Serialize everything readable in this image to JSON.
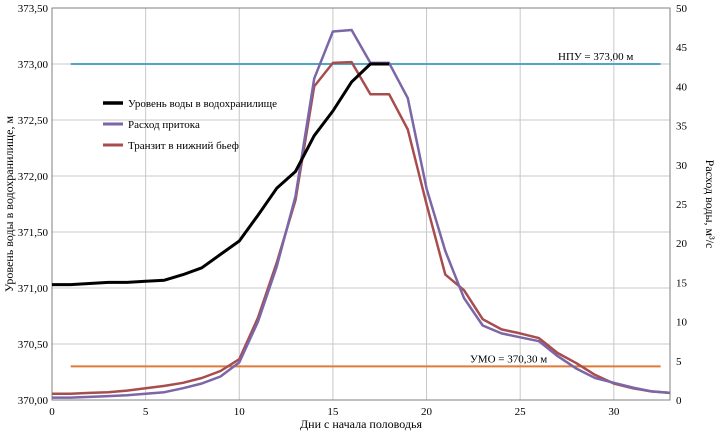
{
  "chart_data": {
    "type": "line",
    "xlabel": "Дни с начала половодья",
    "ylabel_left": "Уровень воды в водохранилище, м",
    "ylabel_right": "Расход воды, м³/с",
    "xlim": [
      0,
      33
    ],
    "ylim_left": [
      370.0,
      373.5
    ],
    "ylim_right": [
      0,
      50
    ],
    "x_ticks": [
      "0",
      "5",
      "10",
      "15",
      "20",
      "25",
      "30"
    ],
    "x_tick_values": [
      0,
      5,
      10,
      15,
      20,
      25,
      30
    ],
    "y_left_ticks": [
      "370,00",
      "370,50",
      "371,00",
      "371,50",
      "372,00",
      "372,50",
      "373,00",
      "373,50"
    ],
    "y_left_tick_values": [
      370.0,
      370.5,
      371.0,
      371.5,
      372.0,
      372.5,
      373.0,
      373.5
    ],
    "y_right_ticks": [
      "0",
      "5",
      "10",
      "15",
      "20",
      "25",
      "30",
      "35",
      "40",
      "45",
      "50"
    ],
    "y_right_tick_values": [
      0,
      5,
      10,
      15,
      20,
      25,
      30,
      35,
      40,
      45,
      50
    ],
    "grid": true,
    "legend_placement": "upper-left",
    "series": [
      {
        "name": "Уровень воды в водохранилище",
        "axis": "left",
        "color": "#000000",
        "x": [
          0,
          1,
          2,
          3,
          4,
          5,
          6,
          7,
          8,
          9,
          10,
          11,
          12,
          13,
          14,
          15,
          16,
          17,
          18
        ],
        "values": [
          371.03,
          371.03,
          371.04,
          371.05,
          371.05,
          371.06,
          371.07,
          371.12,
          371.18,
          371.3,
          371.42,
          371.65,
          371.89,
          372.04,
          372.36,
          372.58,
          372.84,
          373.0,
          373.0
        ]
      },
      {
        "name": "Расход притока",
        "axis": "right",
        "color": "#7b66a8",
        "x": [
          0,
          1,
          2,
          3,
          4,
          5,
          6,
          7,
          8,
          9,
          10,
          11,
          12,
          13,
          14,
          15,
          16,
          17,
          18,
          19,
          20,
          21,
          22,
          23,
          24,
          25,
          26,
          27,
          28,
          29,
          30,
          31,
          32,
          33
        ],
        "values": [
          0.3,
          0.3,
          0.4,
          0.5,
          0.6,
          0.8,
          1.0,
          1.5,
          2.1,
          3.0,
          4.8,
          10.0,
          17.0,
          26.0,
          41.0,
          47.0,
          47.2,
          43.0,
          43.0,
          38.5,
          27.0,
          19.0,
          13.0,
          9.5,
          8.5,
          8.0,
          7.5,
          5.6,
          4.0,
          2.8,
          2.2,
          1.6,
          1.1,
          0.9
        ]
      },
      {
        "name": "Транзит в нижний бьеф",
        "axis": "right",
        "color": "#a84d4d",
        "x": [
          0,
          1,
          2,
          3,
          4,
          5,
          6,
          7,
          8,
          9,
          10,
          11,
          12,
          13,
          14,
          15,
          16,
          17,
          18,
          19,
          20,
          21,
          22,
          23,
          24,
          25,
          26,
          27,
          28,
          29,
          30,
          31,
          32,
          33
        ],
        "values": [
          0.8,
          0.8,
          0.9,
          1.0,
          1.2,
          1.5,
          1.8,
          2.2,
          2.8,
          3.7,
          5.2,
          10.5,
          17.5,
          25.5,
          40.0,
          43.0,
          43.1,
          39.0,
          39.0,
          34.5,
          25.0,
          16.0,
          14.0,
          10.3,
          9.0,
          8.5,
          7.9,
          6.0,
          4.7,
          3.2,
          2.1,
          1.5,
          1.1,
          0.9
        ]
      }
    ],
    "reference_lines": [
      {
        "label": "НПУ = 373,00 м",
        "axis": "left",
        "value": 373.0,
        "x_start": 1,
        "x_end": 32.5,
        "color": "#4ea6c9"
      },
      {
        "label": "УМО = 370,30 м",
        "axis": "left",
        "value": 370.3,
        "x_start": 1,
        "x_end": 32.5,
        "color": "#e07b39"
      }
    ]
  }
}
